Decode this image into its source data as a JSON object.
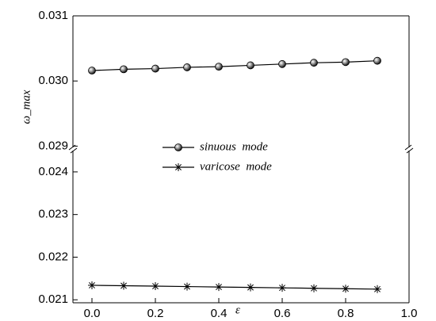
{
  "chart_data": {
    "type": "line",
    "x_label": "ε",
    "y_label": "ω_max",
    "x": [
      0.0,
      0.1,
      0.2,
      0.3,
      0.4,
      0.5,
      0.6,
      0.7,
      0.8,
      0.9
    ],
    "series": [
      {
        "name": "sinuous  mode",
        "color": "#000000",
        "marker": "circle",
        "values": [
          0.03016,
          0.03018,
          0.03019,
          0.03021,
          0.03022,
          0.03024,
          0.03026,
          0.03028,
          0.03029,
          0.03031
        ]
      },
      {
        "name": "varicose  mode",
        "color": "#000000",
        "marker": "star",
        "values": [
          0.02134,
          0.02133,
          0.02132,
          0.02131,
          0.0213,
          0.02129,
          0.02128,
          0.02127,
          0.02126,
          0.02125
        ]
      }
    ],
    "xlim": [
      -0.06,
      1.0
    ],
    "xticks": [
      {
        "value": 0,
        "label": "0.0"
      },
      0.2,
      0.4,
      0.6,
      0.8,
      {
        "value": 1,
        "label": "1.0"
      }
    ],
    "ylim": [
      0.02093,
      0.031
    ],
    "y_break": [
      0.0245,
      0.02898
    ],
    "yticks": [
      0.021,
      0.022,
      0.023,
      0.024,
      0.029,
      {
        "value": 0.03,
        "label": "0.030"
      },
      0.031
    ]
  }
}
